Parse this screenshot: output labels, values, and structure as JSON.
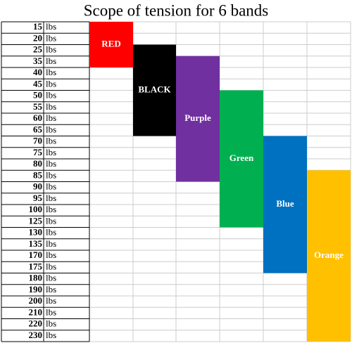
{
  "chart_data": {
    "type": "range",
    "title": "Scope of tension for 6 bands",
    "unit": "lbs",
    "categories": [
      15,
      20,
      25,
      35,
      40,
      45,
      50,
      55,
      60,
      65,
      70,
      75,
      80,
      85,
      90,
      95,
      100,
      125,
      130,
      135,
      170,
      175,
      180,
      190,
      200,
      210,
      220,
      230
    ],
    "series": [
      {
        "name": "RED",
        "color": "#ff0000",
        "low": 15,
        "high": 35
      },
      {
        "name": "BLACK",
        "color": "#000000",
        "low": 25,
        "high": 65
      },
      {
        "name": "Purple",
        "color": "#7030a0",
        "low": 35,
        "high": 85
      },
      {
        "name": "Green",
        "color": "#00b050",
        "low": 50,
        "high": 125
      },
      {
        "name": "Blue",
        "color": "#0070c0",
        "low": 70,
        "high": 175
      },
      {
        "name": "Orange",
        "color": "#ffc000",
        "low": 85,
        "high": 230
      }
    ]
  }
}
